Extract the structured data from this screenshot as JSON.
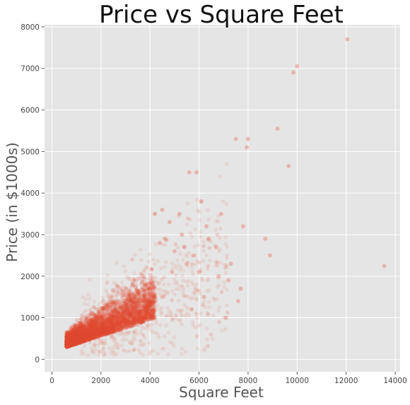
{
  "chart_data": {
    "type": "scatter",
    "title": "Price vs Square Feet",
    "xlabel": "Square Feet",
    "ylabel": "Price (in $1000s)",
    "xlim": [
      -300,
      14200
    ],
    "ylim": [
      -300,
      8050
    ],
    "xticks": [
      0,
      2000,
      4000,
      6000,
      8000,
      10000,
      12000,
      14000
    ],
    "yticks": [
      0,
      1000,
      2000,
      3000,
      4000,
      5000,
      6000,
      7000,
      8000
    ],
    "grid": true,
    "colors": {
      "point": "#E24A33",
      "background": "#E5E5E5",
      "grid": "#FFFFFF"
    },
    "series": [
      {
        "x": [
          12050,
          10000,
          9850,
          9200,
          8000,
          7950,
          7500,
          9650,
          13550,
          8700,
          7800,
          6900,
          6100,
          5900,
          5600,
          5200,
          4800,
          4500,
          4200,
          6700,
          7300,
          7600,
          6400,
          5800,
          8900,
          7100,
          5400,
          6000,
          7700,
          6300,
          5000,
          4600,
          5300,
          6800,
          5500,
          4900,
          7200,
          6200,
          5700,
          4400
        ],
        "y": [
          7700,
          7050,
          6900,
          5550,
          5300,
          5100,
          5300,
          4650,
          2250,
          2900,
          3200,
          3500,
          3800,
          4500,
          4500,
          3500,
          3300,
          3600,
          3500,
          2700,
          2300,
          1400,
          2900,
          2500,
          2500,
          1000,
          2700,
          2100,
          1700,
          3200,
          2600,
          2900,
          3000,
          2000,
          2300,
          2100,
          1900,
          1500,
          1200,
          2800
        ]
      }
    ]
  }
}
